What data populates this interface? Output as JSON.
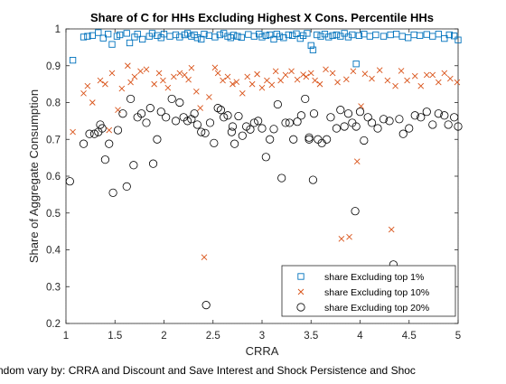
{
  "chart_data": {
    "type": "scatter",
    "title": "Share of C for HHs Excluding Highest X Cons. Percentile HHs",
    "xlabel": "CRRA",
    "ylabel": "Share of Aggregate Consumption",
    "footnote": "ndom vary by: CRRA and Discount and Save Interest and Shock Persistence and Shoc",
    "xlim": [
      1,
      5
    ],
    "ylim": [
      0.2,
      1.0
    ],
    "xticks": [
      "1",
      "1.5",
      "2",
      "2.5",
      "3",
      "3.5",
      "4",
      "4.5",
      "5"
    ],
    "yticks": [
      "0.2",
      "0.3",
      "0.4",
      "0.5",
      "0.6",
      "0.7",
      "0.8",
      "0.9",
      "1"
    ],
    "grid": "minor-dotted",
    "legend_position": "bottom-right",
    "series": [
      {
        "name": "share Excluding top 1%",
        "marker": "square",
        "color": "#0072BD",
        "points": [
          [
            1.07,
            0.915
          ],
          [
            1.18,
            0.978
          ],
          [
            1.22,
            0.98
          ],
          [
            1.27,
            0.982
          ],
          [
            1.33,
            0.99
          ],
          [
            1.38,
            0.975
          ],
          [
            1.43,
            0.986
          ],
          [
            1.47,
            0.958
          ],
          [
            1.52,
            0.98
          ],
          [
            1.55,
            0.984
          ],
          [
            1.62,
            0.988
          ],
          [
            1.65,
            0.962
          ],
          [
            1.7,
            0.978
          ],
          [
            1.73,
            0.986
          ],
          [
            1.78,
            0.972
          ],
          [
            1.85,
            0.98
          ],
          [
            1.88,
            0.988
          ],
          [
            1.93,
            0.982
          ],
          [
            1.97,
            0.976
          ],
          [
            2.0,
            0.986
          ],
          [
            2.06,
            0.98
          ],
          [
            2.12,
            0.984
          ],
          [
            2.16,
            0.978
          ],
          [
            2.21,
            0.984
          ],
          [
            2.24,
            0.988
          ],
          [
            2.28,
            0.98
          ],
          [
            2.31,
            0.984
          ],
          [
            2.34,
            0.976
          ],
          [
            2.38,
            0.972
          ],
          [
            2.41,
            0.986
          ],
          [
            2.46,
            0.982
          ],
          [
            2.52,
            0.978
          ],
          [
            2.57,
            0.984
          ],
          [
            2.61,
            0.988
          ],
          [
            2.65,
            0.98
          ],
          [
            2.68,
            0.976
          ],
          [
            2.71,
            0.983
          ],
          [
            2.75,
            0.98
          ],
          [
            2.79,
            0.977
          ],
          [
            2.86,
            0.985
          ],
          [
            2.92,
            0.98
          ],
          [
            2.97,
            0.986
          ],
          [
            3.0,
            0.978
          ],
          [
            3.04,
            0.982
          ],
          [
            3.08,
            0.984
          ],
          [
            3.12,
            0.972
          ],
          [
            3.15,
            0.986
          ],
          [
            3.18,
            0.98
          ],
          [
            3.22,
            0.976
          ],
          [
            3.27,
            0.984
          ],
          [
            3.31,
            0.982
          ],
          [
            3.35,
            0.987
          ],
          [
            3.39,
            0.974
          ],
          [
            3.42,
            0.982
          ],
          [
            3.46,
            0.988
          ],
          [
            3.5,
            0.955
          ],
          [
            3.52,
            0.943
          ],
          [
            3.56,
            0.984
          ],
          [
            3.6,
            0.98
          ],
          [
            3.64,
            0.986
          ],
          [
            3.68,
            0.978
          ],
          [
            3.72,
            0.982
          ],
          [
            3.76,
            0.984
          ],
          [
            3.8,
            0.98
          ],
          [
            3.84,
            0.988
          ],
          [
            3.88,
            0.978
          ],
          [
            3.92,
            0.984
          ],
          [
            3.96,
            0.905
          ],
          [
            3.99,
            0.982
          ],
          [
            4.04,
            0.986
          ],
          [
            4.1,
            0.98
          ],
          [
            4.16,
            0.984
          ],
          [
            4.24,
            0.98
          ],
          [
            4.31,
            0.984
          ],
          [
            4.37,
            0.986
          ],
          [
            4.43,
            0.98
          ],
          [
            4.49,
            0.976
          ],
          [
            4.55,
            0.984
          ],
          [
            4.61,
            0.982
          ],
          [
            4.68,
            0.985
          ],
          [
            4.74,
            0.98
          ],
          [
            4.8,
            0.986
          ],
          [
            4.86,
            0.974
          ],
          [
            4.91,
            0.984
          ],
          [
            4.96,
            0.981
          ],
          [
            5.0,
            0.97
          ]
        ]
      },
      {
        "name": "share Excluding top 10%",
        "marker": "x",
        "color": "#D95319",
        "points": [
          [
            1.07,
            0.72
          ],
          [
            1.18,
            0.825
          ],
          [
            1.22,
            0.845
          ],
          [
            1.27,
            0.8
          ],
          [
            1.35,
            0.86
          ],
          [
            1.4,
            0.85
          ],
          [
            1.44,
            0.725
          ],
          [
            1.47,
            0.88
          ],
          [
            1.53,
            0.78
          ],
          [
            1.57,
            0.838
          ],
          [
            1.63,
            0.9
          ],
          [
            1.66,
            0.855
          ],
          [
            1.7,
            0.87
          ],
          [
            1.76,
            0.885
          ],
          [
            1.82,
            0.89
          ],
          [
            1.9,
            0.85
          ],
          [
            1.95,
            0.88
          ],
          [
            1.99,
            0.86
          ],
          [
            2.04,
            0.84
          ],
          [
            2.1,
            0.87
          ],
          [
            2.16,
            0.88
          ],
          [
            2.21,
            0.875
          ],
          [
            2.25,
            0.862
          ],
          [
            2.28,
            0.894
          ],
          [
            2.33,
            0.83
          ],
          [
            2.37,
            0.785
          ],
          [
            2.41,
            0.38
          ],
          [
            2.46,
            0.815
          ],
          [
            2.52,
            0.895
          ],
          [
            2.55,
            0.88
          ],
          [
            2.6,
            0.86
          ],
          [
            2.65,
            0.87
          ],
          [
            2.7,
            0.85
          ],
          [
            2.74,
            0.856
          ],
          [
            2.8,
            0.825
          ],
          [
            2.85,
            0.87
          ],
          [
            2.9,
            0.85
          ],
          [
            2.95,
            0.877
          ],
          [
            3.0,
            0.84
          ],
          [
            3.05,
            0.86
          ],
          [
            3.1,
            0.848
          ],
          [
            3.14,
            0.885
          ],
          [
            3.19,
            0.86
          ],
          [
            3.24,
            0.875
          ],
          [
            3.3,
            0.885
          ],
          [
            3.36,
            0.862
          ],
          [
            3.42,
            0.876
          ],
          [
            3.45,
            0.87
          ],
          [
            3.5,
            0.88
          ],
          [
            3.54,
            0.86
          ],
          [
            3.59,
            0.85
          ],
          [
            3.65,
            0.89
          ],
          [
            3.72,
            0.88
          ],
          [
            3.77,
            0.855
          ],
          [
            3.81,
            0.43
          ],
          [
            3.86,
            0.863
          ],
          [
            3.89,
            0.435
          ],
          [
            3.93,
            0.885
          ],
          [
            3.97,
            0.64
          ],
          [
            4.01,
            0.79
          ],
          [
            4.05,
            0.878
          ],
          [
            4.12,
            0.865
          ],
          [
            4.2,
            0.888
          ],
          [
            4.28,
            0.86
          ],
          [
            4.32,
            0.455
          ],
          [
            4.36,
            0.845
          ],
          [
            4.42,
            0.886
          ],
          [
            4.48,
            0.86
          ],
          [
            4.56,
            0.872
          ],
          [
            4.62,
            0.845
          ],
          [
            4.68,
            0.875
          ],
          [
            4.74,
            0.875
          ],
          [
            4.8,
            0.855
          ],
          [
            4.86,
            0.88
          ],
          [
            4.92,
            0.865
          ],
          [
            4.99,
            0.855
          ]
        ]
      },
      {
        "name": "share Excluding top 20%",
        "marker": "circle",
        "color": "#000000",
        "points": [
          [
            1.04,
            0.586
          ],
          [
            1.18,
            0.688
          ],
          [
            1.24,
            0.715
          ],
          [
            1.29,
            0.715
          ],
          [
            1.33,
            0.72
          ],
          [
            1.37,
            0.73
          ],
          [
            1.4,
            0.645
          ],
          [
            1.44,
            0.688
          ],
          [
            1.48,
            0.555
          ],
          [
            1.53,
            0.725
          ],
          [
            1.58,
            0.77
          ],
          [
            1.62,
            0.572
          ],
          [
            1.66,
            0.81
          ],
          [
            1.69,
            0.63
          ],
          [
            1.73,
            0.76
          ],
          [
            1.77,
            0.77
          ],
          [
            1.82,
            0.745
          ],
          [
            1.86,
            0.785
          ],
          [
            1.89,
            0.634
          ],
          [
            1.93,
            0.7
          ],
          [
            1.97,
            0.775
          ],
          [
            2.02,
            0.76
          ],
          [
            2.08,
            0.81
          ],
          [
            2.12,
            0.75
          ],
          [
            2.16,
            0.8
          ],
          [
            2.2,
            0.76
          ],
          [
            2.24,
            0.75
          ],
          [
            2.28,
            0.755
          ],
          [
            2.31,
            0.77
          ],
          [
            2.34,
            0.74
          ],
          [
            2.38,
            0.72
          ],
          [
            2.42,
            0.717
          ],
          [
            2.47,
            0.745
          ],
          [
            2.51,
            0.69
          ],
          [
            2.55,
            0.785
          ],
          [
            2.58,
            0.78
          ],
          [
            2.61,
            0.76
          ],
          [
            2.65,
            0.765
          ],
          [
            2.69,
            0.72
          ],
          [
            2.72,
            0.688
          ],
          [
            2.76,
            0.763
          ],
          [
            2.8,
            0.71
          ],
          [
            2.84,
            0.735
          ],
          [
            2.88,
            0.727
          ],
          [
            2.92,
            0.745
          ],
          [
            2.96,
            0.75
          ],
          [
            3.0,
            0.73
          ],
          [
            3.04,
            0.652
          ],
          [
            3.08,
            0.7
          ],
          [
            3.12,
            0.728
          ],
          [
            3.16,
            0.795
          ],
          [
            3.2,
            0.595
          ],
          [
            3.24,
            0.745
          ],
          [
            3.28,
            0.745
          ],
          [
            3.32,
            0.7
          ],
          [
            3.36,
            0.748
          ],
          [
            3.4,
            0.765
          ],
          [
            3.44,
            0.81
          ],
          [
            3.48,
            0.705
          ],
          [
            3.53,
            0.77
          ],
          [
            3.57,
            0.7
          ],
          [
            3.61,
            0.69
          ],
          [
            3.66,
            0.7
          ],
          [
            3.7,
            0.76
          ],
          [
            3.76,
            0.73
          ],
          [
            3.8,
            0.78
          ],
          [
            3.84,
            0.735
          ],
          [
            3.88,
            0.77
          ],
          [
            3.92,
            0.745
          ],
          [
            3.96,
            0.735
          ],
          [
            4.0,
            0.775
          ],
          [
            4.04,
            0.697
          ],
          [
            4.08,
            0.76
          ],
          [
            4.12,
            0.745
          ],
          [
            4.18,
            0.73
          ],
          [
            4.24,
            0.755
          ],
          [
            4.3,
            0.75
          ],
          [
            4.34,
            0.36
          ],
          [
            4.4,
            0.755
          ],
          [
            4.44,
            0.715
          ],
          [
            4.5,
            0.73
          ],
          [
            4.56,
            0.765
          ],
          [
            4.62,
            0.76
          ],
          [
            4.68,
            0.775
          ],
          [
            4.74,
            0.74
          ],
          [
            4.8,
            0.77
          ],
          [
            4.86,
            0.765
          ],
          [
            4.9,
            0.74
          ],
          [
            4.96,
            0.76
          ],
          [
            5.0,
            0.735
          ],
          [
            2.43,
            0.25
          ],
          [
            3.52,
            0.59
          ],
          [
            3.95,
            0.505
          ],
          [
            1.35,
            0.74
          ],
          [
            2.7,
            0.735
          ],
          [
            3.48,
            0.7
          ]
        ]
      }
    ]
  }
}
